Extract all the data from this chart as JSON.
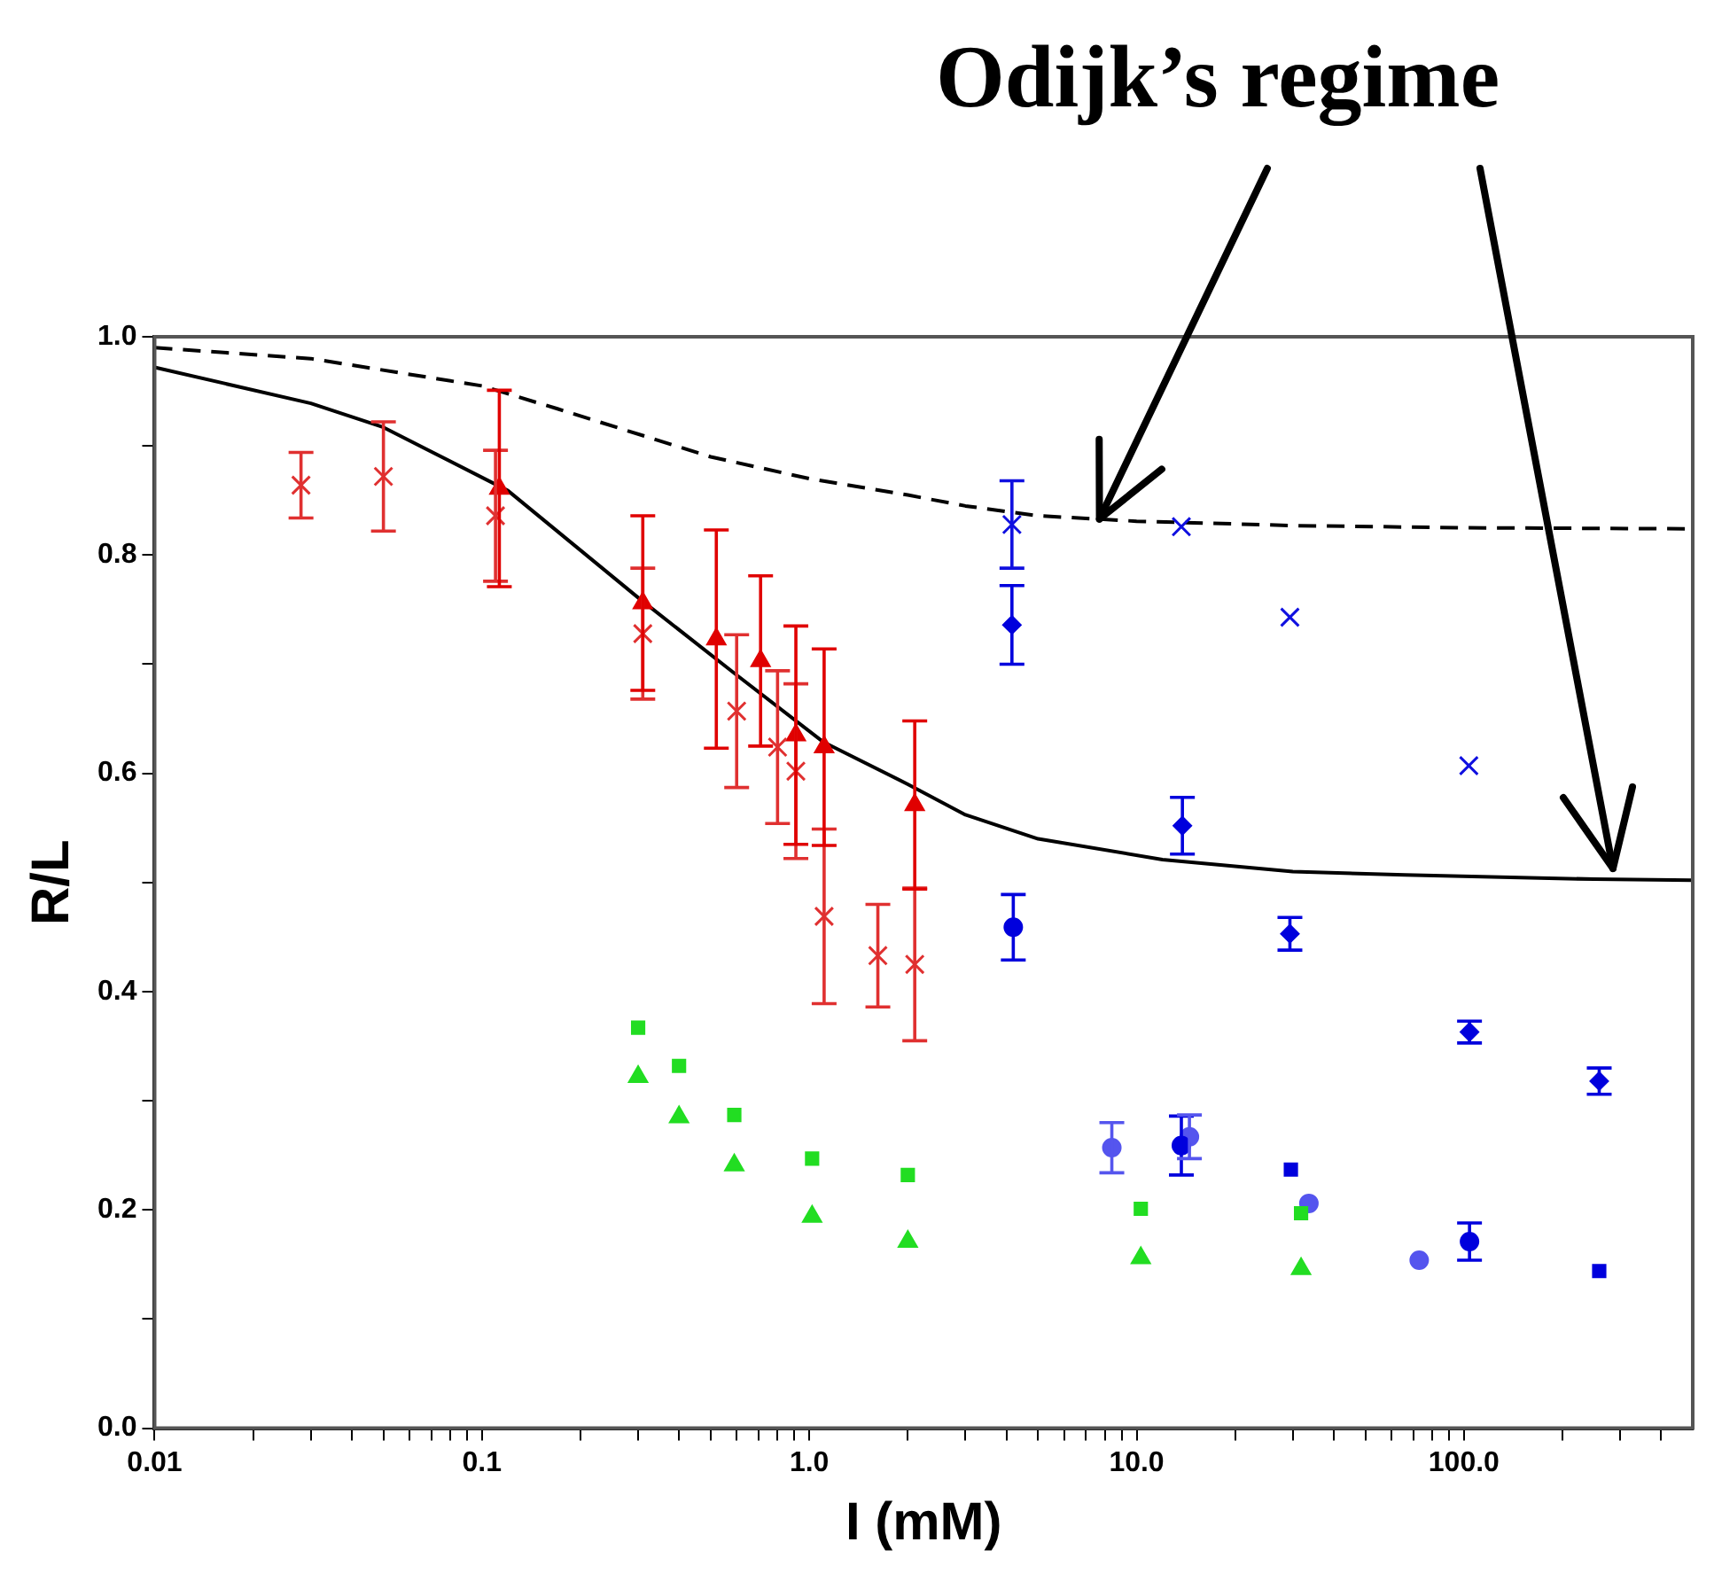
{
  "chart_data": {
    "type": "scatter",
    "xlabel": "I (mM)",
    "ylabel": "R/L",
    "log": "x",
    "grid": false,
    "legend": false,
    "xlim": [
      0.01,
      500
    ],
    "xticks": [
      0.01,
      {
        "value": 0.02,
        "label": null
      },
      {
        "value": 0.03,
        "label": null
      },
      {
        "value": 0.04,
        "label": null
      },
      {
        "value": 0.05,
        "label": null
      },
      {
        "value": 0.06,
        "label": null
      },
      {
        "value": 0.07,
        "label": null
      },
      {
        "value": 0.08,
        "label": null
      },
      {
        "value": 0.09,
        "label": null
      },
      0.1,
      {
        "value": 0.2,
        "label": null
      },
      {
        "value": 0.3,
        "label": null
      },
      {
        "value": 0.4,
        "label": null
      },
      {
        "value": 0.5,
        "label": null
      },
      {
        "value": 0.6,
        "label": null
      },
      {
        "value": 0.7,
        "label": null
      },
      {
        "value": 0.8,
        "label": null
      },
      {
        "value": 0.9,
        "label": null
      },
      {
        "value": 1,
        "label": "1.0"
      },
      {
        "value": 2,
        "label": null
      },
      {
        "value": 3,
        "label": null
      },
      {
        "value": 4,
        "label": null
      },
      {
        "value": 5,
        "label": null
      },
      {
        "value": 6,
        "label": null
      },
      {
        "value": 7,
        "label": null
      },
      {
        "value": 8,
        "label": null
      },
      {
        "value": 9,
        "label": null
      },
      {
        "value": 10,
        "label": "10.0"
      },
      {
        "value": 20,
        "label": null
      },
      {
        "value": 30,
        "label": null
      },
      {
        "value": 40,
        "label": null
      },
      {
        "value": 50,
        "label": null
      },
      {
        "value": 60,
        "label": null
      },
      {
        "value": 70,
        "label": null
      },
      {
        "value": 80,
        "label": null
      },
      {
        "value": 90,
        "label": null
      },
      {
        "value": 100,
        "label": "100.0"
      },
      {
        "value": 200,
        "label": null
      },
      {
        "value": 300,
        "label": null
      },
      {
        "value": 400,
        "label": null
      }
    ],
    "ylim": [
      0,
      1
    ],
    "yticks": [
      {
        "value": 0,
        "label": "0.0"
      },
      {
        "value": 0.1,
        "label": null
      },
      {
        "value": 0.2,
        "label": "0.2"
      },
      {
        "value": 0.3,
        "label": null
      },
      {
        "value": 0.4,
        "label": "0.4"
      },
      {
        "value": 0.5,
        "label": null
      },
      {
        "value": 0.6,
        "label": "0.6"
      },
      {
        "value": 0.7,
        "label": null
      },
      {
        "value": 0.8,
        "label": "0.8"
      },
      {
        "value": 0.9,
        "label": null
      },
      {
        "value": 1,
        "label": "1.0"
      }
    ],
    "annotations": [
      {
        "text": "Odijk’s regime",
        "x": 7.7,
        "y": 0.833
      }
    ],
    "series": [
      {
        "type": "line",
        "color": "#000000",
        "line_style": "dashed",
        "marker": "none",
        "x": [
          0.01,
          0.03,
          0.1,
          0.17,
          0.5,
          1,
          2,
          3,
          5,
          10,
          30,
          100,
          500
        ],
        "values": [
          0.99,
          0.98,
          0.955,
          0.934,
          0.89,
          0.87,
          0.855,
          0.845,
          0.836,
          0.831,
          0.827,
          0.825,
          0.824
        ]
      },
      {
        "type": "line",
        "color": "#000000",
        "line_style": "solid",
        "marker": "none",
        "x": [
          0.01,
          0.03,
          0.05,
          0.12,
          0.3,
          0.6,
          1.1,
          2,
          3,
          5,
          12,
          30,
          66,
          250,
          500
        ],
        "values": [
          0.972,
          0.939,
          0.917,
          0.859,
          0.761,
          0.69,
          0.629,
          0.59,
          0.562,
          0.54,
          0.521,
          0.51,
          0.507,
          0.503,
          0.502
        ]
      },
      {
        "color": "#e03030",
        "marker": "cross",
        "x": [
          0.028,
          0.05,
          0.11,
          0.31,
          0.6,
          0.8,
          0.91,
          1.11,
          1.62,
          2.1
        ],
        "values": [
          0.864,
          0.872,
          0.836,
          0.728,
          0.657,
          0.624,
          0.602,
          0.469,
          0.433,
          0.425
        ],
        "errors": [
          0.03,
          0.05,
          0.06,
          0.06,
          0.07,
          0.07,
          0.08,
          0.08,
          0.047,
          0.07
        ]
      },
      {
        "color": "#e00000",
        "marker": "triangle",
        "x": [
          0.113,
          0.31,
          0.52,
          0.71,
          0.91,
          1.11,
          2.1
        ],
        "values": [
          0.861,
          0.756,
          0.723,
          0.703,
          0.635,
          0.624,
          0.571
        ],
        "errors": [
          0.09,
          0.08,
          0.1,
          0.078,
          0.1,
          0.09,
          0.077
        ]
      },
      {
        "color": "#22dd22",
        "marker": "square",
        "x": [
          0.3,
          0.4,
          0.59,
          1.02,
          2,
          10.3,
          31.8
        ],
        "values": [
          0.367,
          0.332,
          0.287,
          0.247,
          0.232,
          0.201,
          0.197
        ]
      },
      {
        "color": "#22dd22",
        "marker": "triangle",
        "x": [
          0.3,
          0.4,
          0.59,
          1.02,
          2,
          10.3,
          31.8
        ],
        "values": [
          0.322,
          0.285,
          0.241,
          0.194,
          0.171,
          0.156,
          0.146
        ]
      },
      {
        "color": "#1010e0",
        "marker": "cross",
        "x": [
          4.16,
          13.7,
          29.4,
          103.5
        ],
        "values": [
          0.828,
          0.826,
          0.743,
          0.607
        ],
        "errors": [
          0.04,
          null,
          null,
          null
        ]
      },
      {
        "color": "#0000dd",
        "marker": "diamond",
        "x": [
          4.16,
          13.8,
          29.4,
          104,
          259
        ],
        "values": [
          0.736,
          0.552,
          0.453,
          0.363,
          0.318
        ],
        "errors": [
          0.036,
          0.026,
          0.015,
          0.01,
          0.012
        ]
      },
      {
        "color": "#0000dd",
        "marker": "circle",
        "x": [
          4.2,
          13.7,
          104
        ],
        "values": [
          0.459,
          0.259,
          0.171
        ],
        "errors": [
          0.03,
          0.027,
          0.017
        ]
      },
      {
        "color": "#0000dd",
        "marker": "square",
        "x": [
          29.6,
          259
        ],
        "values": [
          0.237,
          0.144
        ]
      },
      {
        "color": "#5555ee",
        "marker": "circle",
        "x": [
          8.4,
          14.5,
          33.6,
          73
        ],
        "values": [
          0.257,
          0.267,
          0.206,
          0.154
        ],
        "errors": [
          0.023,
          0.02,
          null,
          null
        ]
      }
    ]
  }
}
